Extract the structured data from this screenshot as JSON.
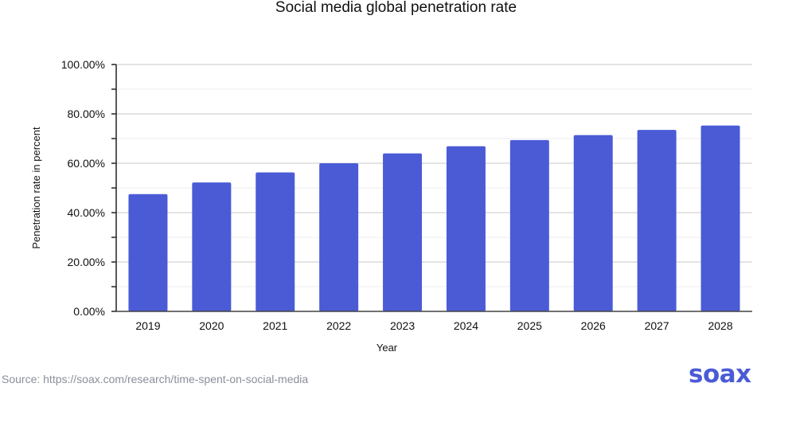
{
  "chart_data": {
    "type": "bar",
    "title": "Social media global penetration rate",
    "xlabel": "Year",
    "ylabel": "Penetration rate in percent",
    "categories": [
      "2019",
      "2020",
      "2021",
      "2022",
      "2023",
      "2024",
      "2025",
      "2026",
      "2027",
      "2028"
    ],
    "values": [
      47.5,
      52.2,
      56.3,
      60.0,
      64.0,
      66.9,
      69.4,
      71.4,
      73.5,
      75.3
    ],
    "ylim": [
      0,
      100
    ],
    "yticks": [
      "0.00%",
      "20.00%",
      "40.00%",
      "60.00%",
      "80.00%",
      "100.00%"
    ],
    "grid": true,
    "bar_color": "#4b5bd6"
  },
  "source": "Source: https://soax.com/research/time-spent-on-social-media",
  "logo": "soax"
}
